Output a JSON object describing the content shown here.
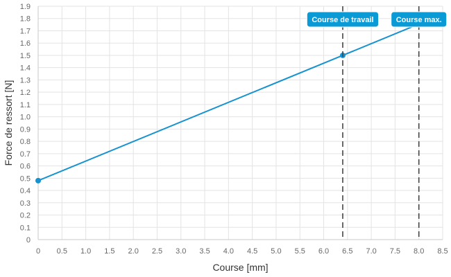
{
  "chart_data": {
    "type": "line",
    "xlabel": "Course [mm]",
    "ylabel": "Force de ressort [N]",
    "xlim": [
      0,
      8.5
    ],
    "ylim": [
      0,
      1.9
    ],
    "x_ticks": [
      "0",
      "0.5",
      "1.0",
      "1.5",
      "2.0",
      "2.5",
      "3.0",
      "3.5",
      "4.0",
      "4.5",
      "5.0",
      "5.5",
      "6.0",
      "6.5",
      "7.0",
      "7.5",
      "8.0",
      "8.5"
    ],
    "y_ticks": [
      "0",
      "0.1",
      "0.2",
      "0.3",
      "0.4",
      "0.5",
      "0.6",
      "0.7",
      "0.8",
      "0.9",
      "1.0",
      "1.1",
      "1.2",
      "1.3",
      "1.4",
      "1.5",
      "1.6",
      "1.7",
      "1.8",
      "1.9"
    ],
    "grid": true,
    "series": [
      {
        "color": "#1592cf",
        "points": [
          {
            "x": 0,
            "y": 0.48,
            "marker": true
          },
          {
            "x": 6.4,
            "y": 1.5,
            "marker": true
          },
          {
            "x": 8.0,
            "y": 1.755,
            "marker": false
          }
        ]
      }
    ],
    "markers": [
      {
        "x": 6.4,
        "label": "Course de travail",
        "color": "#0a9ad6"
      },
      {
        "x": 8.0,
        "label": "Course max.",
        "color": "#0a9ad6"
      }
    ]
  }
}
